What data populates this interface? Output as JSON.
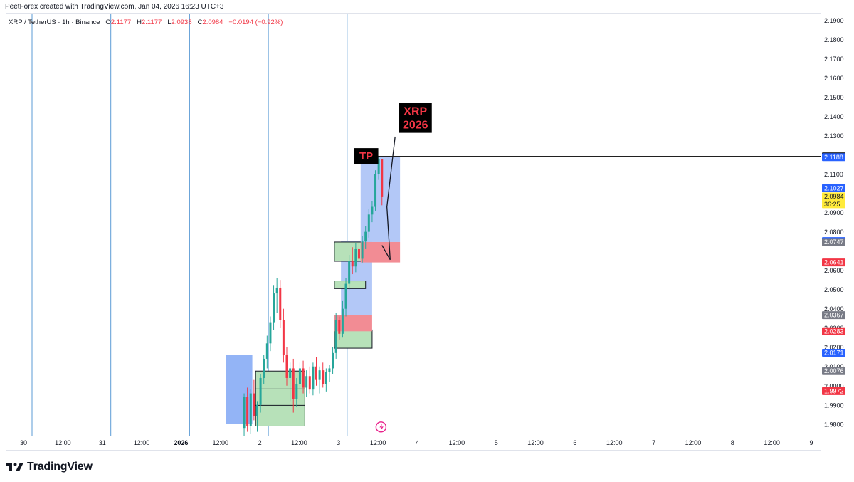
{
  "header": {
    "text": "PeetForex created with TradingView.com, Jan 04, 2026 16:23 UTC+3"
  },
  "legend": {
    "symbol": "XRP / TetherUS · 1h · Binance",
    "open_label": "O",
    "open": "2.1177",
    "high_label": "H",
    "high": "2.1177",
    "low_label": "L",
    "low": "2.0938",
    "close_label": "C",
    "close": "2.0984",
    "change": "−0.0194 (−0.92%)"
  },
  "footer": {
    "brand": "TradingView"
  },
  "colors": {
    "up": "#26a69a",
    "down": "#f23645",
    "vline": "#5b9bd5",
    "target_zone": "#b3c8f7",
    "stop_zone": "#f28c94",
    "green_box": "#b7e1b9",
    "blue_box": "#8db0f5"
  },
  "chart_data": {
    "type": "candlestick",
    "symbol": "XRP / TetherUS",
    "interval": "1h",
    "exchange": "Binance",
    "ylim": [
      1.974,
      2.1935
    ],
    "y_ticks": [
      "2.1900",
      "2.1800",
      "2.1700",
      "2.1600",
      "2.1500",
      "2.1400",
      "2.1300",
      "2.1100",
      "2.0900",
      "2.0800",
      "2.0600",
      "2.0500",
      "2.0400",
      "2.0300",
      "2.0200",
      "2.0100",
      "2.0000",
      "1.9900",
      "1.9800"
    ],
    "x_ticks": [
      "30",
      "12:00",
      "31",
      "12:00",
      "2026",
      "12:00",
      "2",
      "12:00",
      "3",
      "12:00",
      "4",
      "12:00",
      "5",
      "12:00",
      "6",
      "12:00",
      "7",
      "12:00",
      "8",
      "12:00",
      "9"
    ],
    "day_separators": [
      "30",
      "31",
      "2026",
      "2",
      "3",
      "4"
    ],
    "price_tags": [
      {
        "value": "2.1192",
        "bg": "#000000",
        "fg": "#ffffff"
      },
      {
        "value": "2.1188",
        "bg": "#2962ff",
        "fg": "#ffffff"
      },
      {
        "value": "2.1027",
        "bg": "#2962ff",
        "fg": "#ffffff"
      },
      {
        "value": "2.0984",
        "bg": "#ffeb3b",
        "fg": "#131722",
        "extra": "36:25"
      },
      {
        "value": "2.0752",
        "bg": "#2962ff",
        "fg": "#ffffff"
      },
      {
        "value": "2.0747",
        "bg": "#787b86",
        "fg": "#ffffff"
      },
      {
        "value": "2.0641",
        "bg": "#f23645",
        "fg": "#ffffff"
      },
      {
        "value": "2.0367",
        "bg": "#787b86",
        "fg": "#ffffff"
      },
      {
        "value": "2.0283",
        "bg": "#f23645",
        "fg": "#ffffff"
      },
      {
        "value": "2.0171",
        "bg": "#2962ff",
        "fg": "#ffffff"
      },
      {
        "value": "2.0076",
        "bg": "#787b86",
        "fg": "#ffffff"
      },
      {
        "value": "1.9972",
        "bg": "#f23645",
        "fg": "#ffffff"
      }
    ],
    "candles": [
      {
        "t": 67,
        "o": 1.978,
        "h": 1.996,
        "l": 1.974,
        "c": 1.994
      },
      {
        "t": 68,
        "o": 1.994,
        "h": 1.999,
        "l": 1.976,
        "c": 1.979
      },
      {
        "t": 69,
        "o": 1.979,
        "h": 1.998,
        "l": 1.975,
        "c": 1.996
      },
      {
        "t": 70,
        "o": 1.996,
        "h": 2.003,
        "l": 1.982,
        "c": 1.984
      },
      {
        "t": 71,
        "o": 1.984,
        "h": 1.992,
        "l": 1.976,
        "c": 1.99
      },
      {
        "t": 72,
        "o": 1.99,
        "h": 2.006,
        "l": 1.986,
        "c": 2.004
      },
      {
        "t": 73,
        "o": 2.004,
        "h": 2.016,
        "l": 2.001,
        "c": 2.014
      },
      {
        "t": 74,
        "o": 2.014,
        "h": 2.026,
        "l": 2.009,
        "c": 2.022
      },
      {
        "t": 75,
        "o": 2.022,
        "h": 2.036,
        "l": 2.018,
        "c": 2.033
      },
      {
        "t": 76,
        "o": 2.033,
        "h": 2.052,
        "l": 2.029,
        "c": 2.048
      },
      {
        "t": 77,
        "o": 2.048,
        "h": 2.056,
        "l": 2.038,
        "c": 2.051
      },
      {
        "t": 78,
        "o": 2.051,
        "h": 2.055,
        "l": 2.03,
        "c": 2.034
      },
      {
        "t": 79,
        "o": 2.034,
        "h": 2.04,
        "l": 2.012,
        "c": 2.016
      },
      {
        "t": 80,
        "o": 2.016,
        "h": 2.02,
        "l": 2.0,
        "c": 2.004
      },
      {
        "t": 81,
        "o": 2.004,
        "h": 2.012,
        "l": 1.992,
        "c": 2.009
      },
      {
        "t": 82,
        "o": 2.009,
        "h": 2.014,
        "l": 1.986,
        "c": 1.993
      },
      {
        "t": 83,
        "o": 1.993,
        "h": 2.004,
        "l": 1.989,
        "c": 2.001
      },
      {
        "t": 84,
        "o": 2.001,
        "h": 2.012,
        "l": 1.998,
        "c": 2.009
      },
      {
        "t": 85,
        "o": 2.009,
        "h": 2.013,
        "l": 1.996,
        "c": 1.999
      },
      {
        "t": 86,
        "o": 1.999,
        "h": 2.008,
        "l": 1.994,
        "c": 2.005
      },
      {
        "t": 87,
        "o": 2.005,
        "h": 2.01,
        "l": 1.996,
        "c": 1.998
      },
      {
        "t": 88,
        "o": 1.998,
        "h": 2.012,
        "l": 1.995,
        "c": 2.01
      },
      {
        "t": 89,
        "o": 2.01,
        "h": 2.015,
        "l": 2.0,
        "c": 2.003
      },
      {
        "t": 90,
        "o": 2.003,
        "h": 2.01,
        "l": 1.996,
        "c": 2.008
      },
      {
        "t": 91,
        "o": 2.008,
        "h": 2.012,
        "l": 1.999,
        "c": 2.001
      },
      {
        "t": 92,
        "o": 2.001,
        "h": 2.009,
        "l": 1.997,
        "c": 2.007
      },
      {
        "t": 93,
        "o": 2.007,
        "h": 2.011,
        "l": 2.002,
        "c": 2.009
      },
      {
        "t": 94,
        "o": 2.009,
        "h": 2.02,
        "l": 2.006,
        "c": 2.017
      },
      {
        "t": 95,
        "o": 2.017,
        "h": 2.038,
        "l": 2.014,
        "c": 2.034
      },
      {
        "t": 96,
        "o": 2.034,
        "h": 2.036,
        "l": 2.024,
        "c": 2.027
      },
      {
        "t": 97,
        "o": 2.027,
        "h": 2.044,
        "l": 2.025,
        "c": 2.04
      },
      {
        "t": 98,
        "o": 2.04,
        "h": 2.056,
        "l": 2.036,
        "c": 2.053
      },
      {
        "t": 99,
        "o": 2.053,
        "h": 2.068,
        "l": 2.05,
        "c": 2.065
      },
      {
        "t": 100,
        "o": 2.065,
        "h": 2.072,
        "l": 2.058,
        "c": 2.062
      },
      {
        "t": 101,
        "o": 2.062,
        "h": 2.074,
        "l": 2.059,
        "c": 2.071
      },
      {
        "t": 102,
        "o": 2.071,
        "h": 2.075,
        "l": 2.063,
        "c": 2.066
      },
      {
        "t": 103,
        "o": 2.066,
        "h": 2.078,
        "l": 2.064,
        "c": 2.075
      },
      {
        "t": 104,
        "o": 2.075,
        "h": 2.083,
        "l": 2.071,
        "c": 2.08
      },
      {
        "t": 105,
        "o": 2.08,
        "h": 2.092,
        "l": 2.077,
        "c": 2.089
      },
      {
        "t": 106,
        "o": 2.089,
        "h": 2.096,
        "l": 2.085,
        "c": 2.093
      },
      {
        "t": 107,
        "o": 2.093,
        "h": 2.112,
        "l": 2.091,
        "c": 2.11
      },
      {
        "t": 108,
        "o": 2.11,
        "h": 2.1192,
        "l": 2.107,
        "c": 2.1177
      },
      {
        "t": 109,
        "o": 2.1177,
        "h": 2.1177,
        "l": 2.0938,
        "c": 2.0984
      }
    ],
    "zones": [
      {
        "name": "blue-box-left",
        "t0": 61.5,
        "t1": 69.5,
        "p0": 1.98,
        "p1": 2.016,
        "fill": "#8db0f5"
      },
      {
        "name": "green-box-3",
        "t0": 70.5,
        "t1": 85.5,
        "p0": 1.979,
        "p1": 2.0076,
        "fill": "#b7e1b9"
      },
      {
        "name": "green-box-4-lower",
        "t0": 94.5,
        "t1": 106,
        "p0": 2.0195,
        "p1": 2.029,
        "fill": "#b7e1b9"
      },
      {
        "name": "stop-zone-lower",
        "t0": 94.5,
        "t1": 106,
        "p0": 2.0283,
        "p1": 2.0367,
        "fill": "#f28c94"
      },
      {
        "name": "target-zone-lower",
        "t0": 96.5,
        "t1": 106,
        "p0": 2.0367,
        "p1": 2.0752,
        "fill": "#b3c8f7"
      },
      {
        "name": "green-box-mid",
        "t0": 94.5,
        "t1": 104,
        "p0": 2.0505,
        "p1": 2.0545,
        "fill": "#b7e1b9"
      },
      {
        "name": "green-box-upper",
        "t0": 94.5,
        "t1": 104,
        "p0": 2.0647,
        "p1": 2.0747,
        "fill": "#b7e1b9"
      },
      {
        "name": "target-zone-upper",
        "t0": 102.5,
        "t1": 114.5,
        "p0": 2.0747,
        "p1": 2.1188,
        "fill": "#b3c8f7"
      },
      {
        "name": "stop-zone-upper",
        "t0": 102.5,
        "t1": 114.5,
        "p0": 2.0641,
        "p1": 2.0747,
        "fill": "#f28c94"
      }
    ],
    "annotations": {
      "tp_label": "TP",
      "tp_price": 2.1192,
      "xrp_label_line1": "XRP",
      "xrp_label_line2": "2026"
    }
  }
}
